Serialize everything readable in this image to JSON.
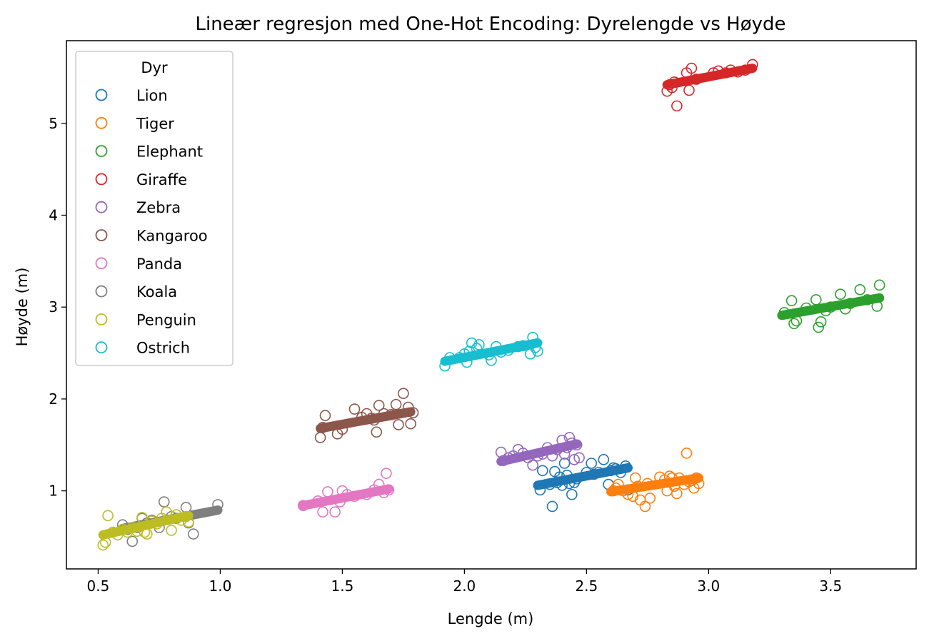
{
  "chart_data": {
    "type": "scatter",
    "title": "Lineær regresjon med One-Hot Encoding: Dyrelengde vs Høyde",
    "xlabel": "Lengde (m)",
    "ylabel": "Høyde (m)",
    "xlim": [
      0.37,
      3.85
    ],
    "ylim": [
      0.15,
      5.9
    ],
    "xticks": [
      0.5,
      1.0,
      1.5,
      2.0,
      2.5,
      3.0,
      3.5
    ],
    "xtick_labels": [
      "0.5",
      "1.0",
      "1.5",
      "2.0",
      "2.5",
      "3.0",
      "3.5"
    ],
    "yticks": [
      1,
      2,
      3,
      4,
      5
    ],
    "ytick_labels": [
      "1",
      "2",
      "3",
      "4",
      "5"
    ],
    "legend": {
      "title": "Dyr",
      "placement": "top-left"
    },
    "series": [
      {
        "name": "Lion",
        "color": "#1f77b4",
        "fit": {
          "x": [
            2.3,
            2.67
          ],
          "y": [
            1.06,
            1.25
          ]
        },
        "points": [
          [
            2.31,
            1.01
          ],
          [
            2.32,
            1.22
          ],
          [
            2.35,
            1.07
          ],
          [
            2.36,
            0.83
          ],
          [
            2.37,
            1.21
          ],
          [
            2.38,
            1.09
          ],
          [
            2.39,
            1.15
          ],
          [
            2.4,
            1.06
          ],
          [
            2.41,
            1.3
          ],
          [
            2.42,
            1.17
          ],
          [
            2.43,
            1.08
          ],
          [
            2.44,
            0.96
          ],
          [
            2.45,
            1.09
          ],
          [
            2.46,
            1.13
          ],
          [
            2.5,
            1.2
          ],
          [
            2.52,
            1.3
          ],
          [
            2.53,
            1.18
          ],
          [
            2.55,
            1.2
          ],
          [
            2.57,
            1.34
          ],
          [
            2.59,
            1.07
          ],
          [
            2.6,
            1.22
          ],
          [
            2.61,
            1.25
          ],
          [
            2.62,
            1.24
          ],
          [
            2.64,
            1.2
          ],
          [
            2.66,
            1.27
          ],
          [
            2.67,
            1.01
          ]
        ]
      },
      {
        "name": "Tiger",
        "color": "#ff7f0e",
        "fit": {
          "x": [
            2.6,
            2.96
          ],
          "y": [
            0.99,
            1.14
          ]
        },
        "points": [
          [
            2.61,
            1.0
          ],
          [
            2.62,
            1.03
          ],
          [
            2.63,
            1.07
          ],
          [
            2.65,
            1.0
          ],
          [
            2.67,
            0.96
          ],
          [
            2.69,
            0.94
          ],
          [
            2.7,
            1.14
          ],
          [
            2.71,
            1.05
          ],
          [
            2.72,
            0.9
          ],
          [
            2.74,
            0.83
          ],
          [
            2.75,
            1.08
          ],
          [
            2.76,
            0.92
          ],
          [
            2.8,
            1.15
          ],
          [
            2.82,
            1.12
          ],
          [
            2.83,
            1.0
          ],
          [
            2.84,
            1.16
          ],
          [
            2.85,
            1.14
          ],
          [
            2.86,
            1.05
          ],
          [
            2.87,
            0.97
          ],
          [
            2.88,
            1.14
          ],
          [
            2.9,
            1.07
          ],
          [
            2.91,
            1.41
          ],
          [
            2.92,
            1.1
          ],
          [
            2.93,
            1.11
          ],
          [
            2.94,
            1.03
          ],
          [
            2.95,
            1.14
          ],
          [
            2.96,
            1.08
          ]
        ]
      },
      {
        "name": "Elephant",
        "color": "#2ca02c",
        "fit": {
          "x": [
            3.3,
            3.7
          ],
          "y": [
            2.91,
            3.1
          ]
        },
        "points": [
          [
            3.31,
            2.94
          ],
          [
            3.34,
            3.07
          ],
          [
            3.35,
            2.82
          ],
          [
            3.36,
            2.85
          ],
          [
            3.4,
            2.99
          ],
          [
            3.44,
            3.08
          ],
          [
            3.45,
            2.78
          ],
          [
            3.46,
            2.84
          ],
          [
            3.48,
            2.96
          ],
          [
            3.5,
            3.0
          ],
          [
            3.54,
            3.14
          ],
          [
            3.56,
            2.98
          ],
          [
            3.58,
            3.04
          ],
          [
            3.62,
            3.19
          ],
          [
            3.65,
            3.08
          ],
          [
            3.69,
            3.01
          ],
          [
            3.7,
            3.24
          ]
        ]
      },
      {
        "name": "Giraffe",
        "color": "#d62728",
        "fit": {
          "x": [
            2.83,
            3.18
          ],
          "y": [
            5.42,
            5.6
          ]
        },
        "points": [
          [
            2.83,
            5.35
          ],
          [
            2.84,
            5.42
          ],
          [
            2.85,
            5.39
          ],
          [
            2.86,
            5.45
          ],
          [
            2.87,
            5.19
          ],
          [
            2.91,
            5.55
          ],
          [
            2.92,
            5.36
          ],
          [
            2.93,
            5.6
          ],
          [
            2.95,
            5.48
          ],
          [
            3.02,
            5.55
          ],
          [
            3.04,
            5.57
          ],
          [
            3.07,
            5.55
          ],
          [
            3.09,
            5.58
          ],
          [
            3.12,
            5.56
          ],
          [
            3.15,
            5.58
          ],
          [
            3.18,
            5.64
          ]
        ]
      },
      {
        "name": "Zebra",
        "color": "#9467bd",
        "fit": {
          "x": [
            2.15,
            2.46
          ],
          "y": [
            1.32,
            1.51
          ]
        },
        "points": [
          [
            2.15,
            1.42
          ],
          [
            2.16,
            1.33
          ],
          [
            2.18,
            1.36
          ],
          [
            2.2,
            1.38
          ],
          [
            2.22,
            1.45
          ],
          [
            2.24,
            1.41
          ],
          [
            2.26,
            1.36
          ],
          [
            2.28,
            1.28
          ],
          [
            2.3,
            1.38
          ],
          [
            2.32,
            1.4
          ],
          [
            2.34,
            1.47
          ],
          [
            2.36,
            1.38
          ],
          [
            2.38,
            1.45
          ],
          [
            2.4,
            1.55
          ],
          [
            2.41,
            1.4
          ],
          [
            2.42,
            1.47
          ],
          [
            2.43,
            1.58
          ],
          [
            2.44,
            1.52
          ],
          [
            2.45,
            1.34
          ],
          [
            2.46,
            1.5
          ],
          [
            2.47,
            1.36
          ]
        ]
      },
      {
        "name": "Kangaroo",
        "color": "#8c564b",
        "fit": {
          "x": [
            1.41,
            1.78
          ],
          "y": [
            1.68,
            1.86
          ]
        },
        "points": [
          [
            1.41,
            1.58
          ],
          [
            1.42,
            1.69
          ],
          [
            1.43,
            1.82
          ],
          [
            1.48,
            1.62
          ],
          [
            1.5,
            1.67
          ],
          [
            1.55,
            1.89
          ],
          [
            1.58,
            1.8
          ],
          [
            1.6,
            1.84
          ],
          [
            1.62,
            1.79
          ],
          [
            1.63,
            1.77
          ],
          [
            1.64,
            1.64
          ],
          [
            1.65,
            1.93
          ],
          [
            1.67,
            1.84
          ],
          [
            1.7,
            1.83
          ],
          [
            1.72,
            1.94
          ],
          [
            1.73,
            1.72
          ],
          [
            1.75,
            2.06
          ],
          [
            1.77,
            1.91
          ],
          [
            1.78,
            1.73
          ],
          [
            1.79,
            1.85
          ]
        ]
      },
      {
        "name": "Panda",
        "color": "#e377c2",
        "fit": {
          "x": [
            1.34,
            1.69
          ],
          "y": [
            0.84,
            1.02
          ]
        },
        "points": [
          [
            1.34,
            0.84
          ],
          [
            1.4,
            0.89
          ],
          [
            1.42,
            0.77
          ],
          [
            1.44,
            0.99
          ],
          [
            1.47,
            0.77
          ],
          [
            1.49,
            0.88
          ],
          [
            1.5,
            1.0
          ],
          [
            1.52,
            0.96
          ],
          [
            1.55,
            0.94
          ],
          [
            1.6,
            0.96
          ],
          [
            1.63,
            1.01
          ],
          [
            1.65,
            1.07
          ],
          [
            1.67,
            0.98
          ],
          [
            1.68,
            1.19
          ],
          [
            1.69,
            1.01
          ]
        ]
      },
      {
        "name": "Koala",
        "color": "#7f7f7f",
        "fit": {
          "x": [
            0.6,
            0.99
          ],
          "y": [
            0.59,
            0.79
          ]
        },
        "points": [
          [
            0.6,
            0.63
          ],
          [
            0.62,
            0.58
          ],
          [
            0.64,
            0.45
          ],
          [
            0.66,
            0.6
          ],
          [
            0.68,
            0.7
          ],
          [
            0.7,
            0.65
          ],
          [
            0.72,
            0.68
          ],
          [
            0.75,
            0.6
          ],
          [
            0.77,
            0.88
          ],
          [
            0.8,
            0.72
          ],
          [
            0.82,
            0.7
          ],
          [
            0.86,
            0.82
          ],
          [
            0.87,
            0.65
          ],
          [
            0.89,
            0.53
          ],
          [
            0.99,
            0.85
          ]
        ]
      },
      {
        "name": "Penguin",
        "color": "#bcbd22",
        "fit": {
          "x": [
            0.52,
            0.87
          ],
          "y": [
            0.52,
            0.73
          ]
        },
        "points": [
          [
            0.52,
            0.41
          ],
          [
            0.53,
            0.44
          ],
          [
            0.54,
            0.73
          ],
          [
            0.56,
            0.55
          ],
          [
            0.58,
            0.52
          ],
          [
            0.6,
            0.58
          ],
          [
            0.62,
            0.55
          ],
          [
            0.64,
            0.6
          ],
          [
            0.66,
            0.56
          ],
          [
            0.68,
            0.71
          ],
          [
            0.69,
            0.55
          ],
          [
            0.7,
            0.53
          ],
          [
            0.72,
            0.67
          ],
          [
            0.74,
            0.64
          ],
          [
            0.76,
            0.7
          ],
          [
            0.78,
            0.77
          ],
          [
            0.8,
            0.57
          ],
          [
            0.82,
            0.74
          ],
          [
            0.84,
            0.68
          ],
          [
            0.86,
            0.72
          ],
          [
            0.87,
            0.66
          ]
        ]
      },
      {
        "name": "Ostrich",
        "color": "#17becf",
        "fit": {
          "x": [
            1.92,
            2.3
          ],
          "y": [
            2.41,
            2.61
          ]
        },
        "points": [
          [
            1.92,
            2.36
          ],
          [
            1.94,
            2.45
          ],
          [
            1.98,
            2.45
          ],
          [
            2.0,
            2.49
          ],
          [
            2.01,
            2.4
          ],
          [
            2.02,
            2.52
          ],
          [
            2.03,
            2.61
          ],
          [
            2.05,
            2.55
          ],
          [
            2.06,
            2.59
          ],
          [
            2.1,
            2.48
          ],
          [
            2.11,
            2.42
          ],
          [
            2.13,
            2.57
          ],
          [
            2.15,
            2.51
          ],
          [
            2.18,
            2.53
          ],
          [
            2.22,
            2.57
          ],
          [
            2.24,
            2.58
          ],
          [
            2.27,
            2.49
          ],
          [
            2.28,
            2.67
          ],
          [
            2.29,
            2.56
          ],
          [
            2.3,
            2.52
          ]
        ]
      }
    ]
  }
}
